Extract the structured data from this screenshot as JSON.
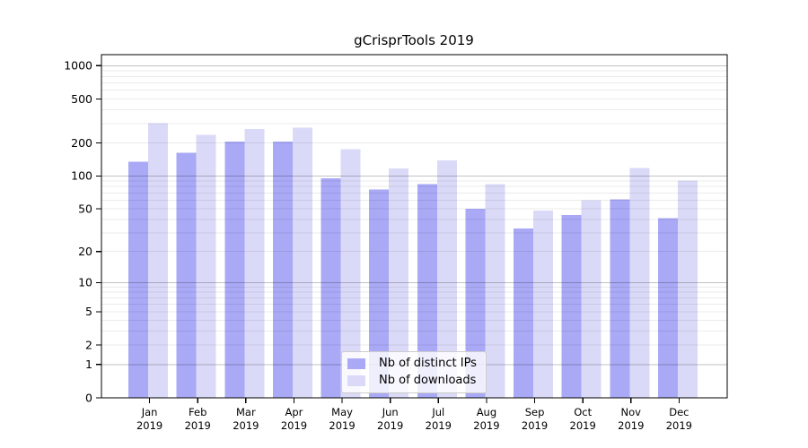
{
  "chart_data": {
    "type": "bar",
    "title": "gCrisprTools 2019",
    "scale": "log1p",
    "categories": [
      "Jan",
      "Feb",
      "Mar",
      "Apr",
      "May",
      "Jun",
      "Jul",
      "Aug",
      "Sep",
      "Oct",
      "Nov",
      "Dec"
    ],
    "x_year_label": "2019",
    "series": [
      {
        "name": "Nb of distinct IPs",
        "color": "#a9a9f6",
        "values": [
          135,
          163,
          205,
          205,
          95,
          75,
          84,
          50,
          33,
          44,
          61,
          41
        ]
      },
      {
        "name": "Nb of downloads",
        "color": "#dadaf8",
        "values": [
          301,
          237,
          267,
          275,
          175,
          117,
          139,
          84,
          48,
          60,
          118,
          91
        ]
      }
    ],
    "y_ticks": [
      1000,
      500,
      200,
      100,
      50,
      20,
      10,
      5,
      2,
      1,
      0
    ],
    "y_major_grid": [
      1,
      10,
      100,
      1000
    ],
    "ylim": [
      0,
      1259
    ],
    "grid": true,
    "legend_position": "lower-center"
  },
  "colors": {
    "axis": "#000000",
    "grid_minor": "rgba(0,0,0,0.08)",
    "grid_major": "rgba(0,0,0,0.24)",
    "text": "#000000",
    "background": "#ffffff"
  }
}
